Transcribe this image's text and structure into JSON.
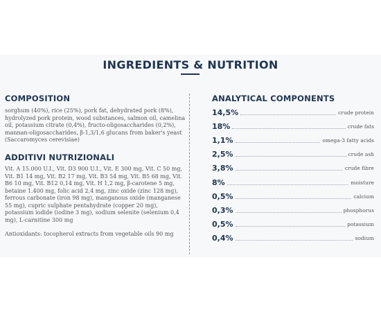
{
  "header": {
    "title": "INGREDIENTS & NUTRITION"
  },
  "composition": {
    "heading": "COMPOSITION",
    "text": "sorghum (40%), rice (25%), pork fat, dehydrated pork (8%), hydrolyzed pork protein, wood substances, salmon oil, camelina oil, potassium citrate (0,4%), fructo-oligosaccharides (0,2%), mannan-oligosaccharides, β-1,3/1,6 glucans from baker's yeast (Saccaromyces cerevisiae)"
  },
  "additives": {
    "heading": "ADDITIVI NUTRIZIONALI",
    "text": "Vit. A 15.000 U.I., Vit. D3 900 U.I., Vit. E 300 mg, Vit. C 50 mg, Vit. B1 14 mg, Vit. B2 17 mg, Vit. B3 54 mg, Vit. B5 68 mg, Vit. B6 10 mg, Vit. B12 0,14 mg, Vit. H 1,2 mg, β-carotene 5 mg, betaine 1.400 mg, folic acid 2,4 mg, zinc oxide (zinc 128 mg), ferrous carbonate (iron 98 mg), manganous oxide (manganese 55 mg), cupric sulphate pentahydrate (copper 20 mg), potassium iodide (iodine 3 mg), sodium selenite (selenium 0,4 mg), L-carnitine 300 mg",
    "antioxidants": "Antioxidants: tocopherol extracts from vegetable oils 90 mg"
  },
  "analytical": {
    "heading": "ANALYTICAL COMPONENTS",
    "items": [
      {
        "value": "14,5%",
        "label": "crude protein"
      },
      {
        "value": "18%",
        "label": "crude fats"
      },
      {
        "value": "1,1%",
        "label": "omega-3 fatty acids"
      },
      {
        "value": "2,5%",
        "label": "crude ash"
      },
      {
        "value": "3,8%",
        "label": "crude fibre"
      },
      {
        "value": "8%",
        "label": "moisture"
      },
      {
        "value": "0,5%",
        "label": "calcium"
      },
      {
        "value": "0,3%",
        "label": "phosphorus"
      },
      {
        "value": "0,5%",
        "label": "potassium"
      },
      {
        "value": "0,4%",
        "label": "sodium"
      }
    ]
  }
}
